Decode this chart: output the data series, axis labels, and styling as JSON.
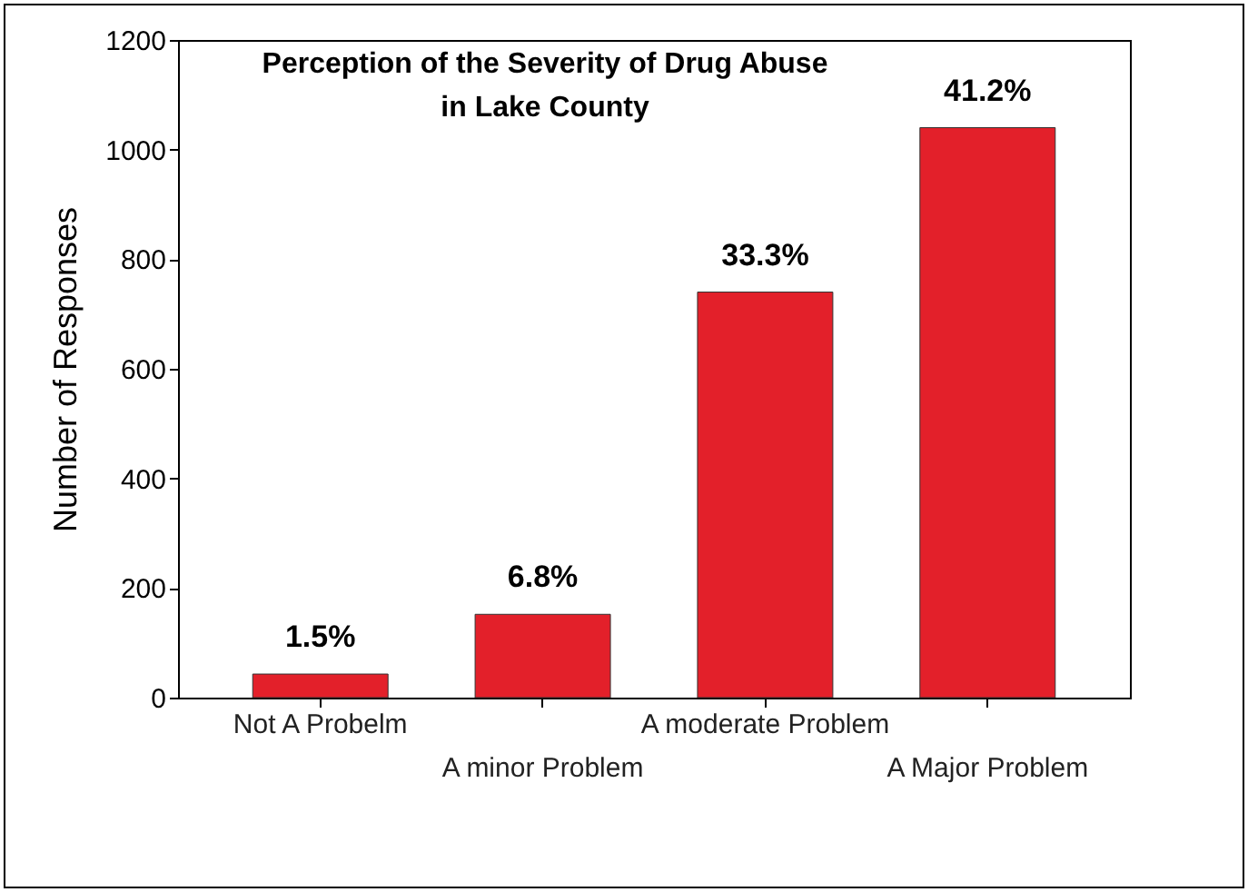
{
  "chart_data": {
    "type": "bar",
    "title": "Perception of the Severity of Drug Abuse in Lake County",
    "ylabel": "Number of Responses",
    "categories": [
      "Not A Probelm",
      "A minor Problem",
      "A moderate Problem",
      "A Major Problem"
    ],
    "values": [
      43,
      152,
      740,
      1040
    ],
    "annotations": [
      {
        "text": "1.5%",
        "x": "Not A Probelm",
        "y": 43
      },
      {
        "text": "6.8%",
        "x": "A minor Problem",
        "y": 152
      },
      {
        "text": "33.3%",
        "x": "A moderate Problem",
        "y": 740
      },
      {
        "text": "41.2%",
        "x": "A Major Problem",
        "y": 1040
      }
    ],
    "color": "#e3202a",
    "ylim": [
      0,
      1200
    ],
    "yticks": [
      0,
      200,
      400,
      600,
      800,
      1000,
      1200
    ],
    "grid": false
  }
}
